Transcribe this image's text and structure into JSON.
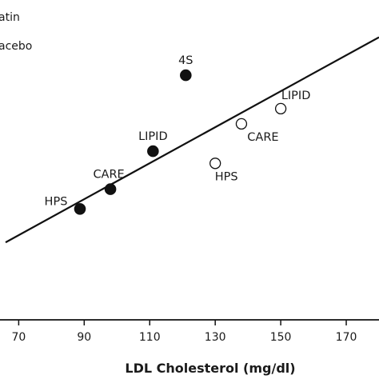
{
  "chart_data": {
    "type": "scatter",
    "title": "",
    "xlabel": "LDL Cholesterol (mg/dl)",
    "ylabel": "",
    "xlim": [
      66,
      180
    ],
    "ylim": [
      0,
      100
    ],
    "x_ticks": [
      70,
      90,
      110,
      130,
      150,
      170
    ],
    "legend": {
      "placement": "top-left",
      "entries": [
        "atin",
        "acebo"
      ]
    },
    "series": [
      {
        "name": "atin",
        "marker": "filled-circle",
        "color": "#111111",
        "points": [
          {
            "label": "HPS",
            "x": 88.7,
            "y": 36.5
          },
          {
            "label": "CARE",
            "x": 98,
            "y": 43
          },
          {
            "label": "LIPID",
            "x": 111,
            "y": 55.5
          },
          {
            "label": "4S",
            "x": 121,
            "y": 80.5
          }
        ]
      },
      {
        "name": "acebo",
        "marker": "open-circle",
        "color": "#111111",
        "points": [
          {
            "label": "HPS",
            "x": 130,
            "y": 51.5
          },
          {
            "label": "CARE",
            "x": 138,
            "y": 64.5
          },
          {
            "label": "LIPID",
            "x": 150,
            "y": 69.5
          }
        ]
      }
    ],
    "trend_line": {
      "x": [
        66,
        180
      ],
      "y": [
        25.5,
        93
      ]
    }
  }
}
